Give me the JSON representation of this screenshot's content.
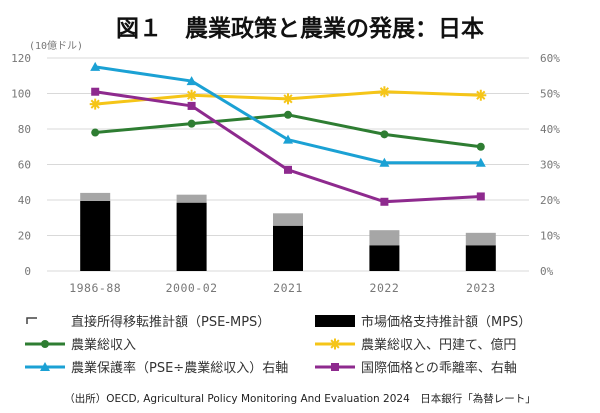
{
  "header": {
    "title": "図１　農業政策と農業の発展：日本",
    "unit_label": "(10億ドル)"
  },
  "chart_data": {
    "type": "combo-bar-line",
    "title": "図１　農業政策と農業の発展：日本",
    "categories": [
      "1986-88",
      "2000-02",
      "2021",
      "2022",
      "2023"
    ],
    "y_left": {
      "label": "(10億ドル)",
      "min": 0,
      "max": 120,
      "ticks": [
        0,
        20,
        40,
        60,
        80,
        100,
        120
      ]
    },
    "y_right": {
      "min": 0,
      "max": 60,
      "ticks": [
        "0%",
        "10%",
        "20%",
        "30%",
        "40%",
        "50%",
        "60%"
      ]
    },
    "bar_series": [
      {
        "name": "市場価格支持推計額（MPS）",
        "color": "#000000",
        "values": [
          39.5,
          38.5,
          25.5,
          14.5,
          14.5
        ]
      },
      {
        "name": "直接所得移転推計額（PSE-MPS）",
        "color": "#a6a6a6",
        "values": [
          4.5,
          4.5,
          7,
          8.5,
          7
        ]
      }
    ],
    "line_series": [
      {
        "name": "農業総収入",
        "axis": "left",
        "color": "#2e7d32",
        "marker": "circle",
        "values": [
          78,
          83,
          88,
          77,
          70
        ]
      },
      {
        "name": "農業総収入、円建て、億円",
        "axis": "left",
        "color": "#f5c518",
        "marker": "star",
        "values": [
          94,
          99,
          97,
          101,
          99
        ]
      },
      {
        "name": "農業保護率（PSE÷農業総収入）右軸",
        "axis": "right",
        "color": "#1ba1d4",
        "marker": "triangle",
        "values": [
          57.5,
          53.5,
          37,
          30.5,
          30.5
        ]
      },
      {
        "name": "国際価格との乖離率、右軸",
        "axis": "right",
        "color": "#8e2a8e",
        "marker": "square",
        "values": [
          50.5,
          46.5,
          28.5,
          19.5,
          21
        ]
      }
    ],
    "legend": [
      {
        "key": "pse_mps",
        "label": "直接所得移転推計額（PSE-MPS）",
        "type": "bar",
        "color": "#a6a6a6"
      },
      {
        "key": "mps",
        "label": "市場価格支持推計額（MPS）",
        "type": "bar",
        "color": "#000000"
      },
      {
        "key": "gross_receipts",
        "label": "農業総収入",
        "type": "line",
        "color": "#2e7d32",
        "marker": "circle"
      },
      {
        "key": "gross_receipts_yen",
        "label": "農業総収入、円建て、億円",
        "type": "line",
        "color": "#f5c518",
        "marker": "star"
      },
      {
        "key": "protection_rate",
        "label": "農業保護率（PSE÷農業総収入）右軸",
        "type": "line",
        "color": "#1ba1d4",
        "marker": "triangle"
      },
      {
        "key": "price_gap",
        "label": "国際価格との乖離率、右軸",
        "type": "line",
        "color": "#8e2a8e",
        "marker": "square"
      }
    ],
    "legend_position": "bottom"
  },
  "footer": {
    "source": "（出所）OECD, Agricultural Policy Monitoring And Evaluation 2024　日本銀行「為替レート」"
  }
}
